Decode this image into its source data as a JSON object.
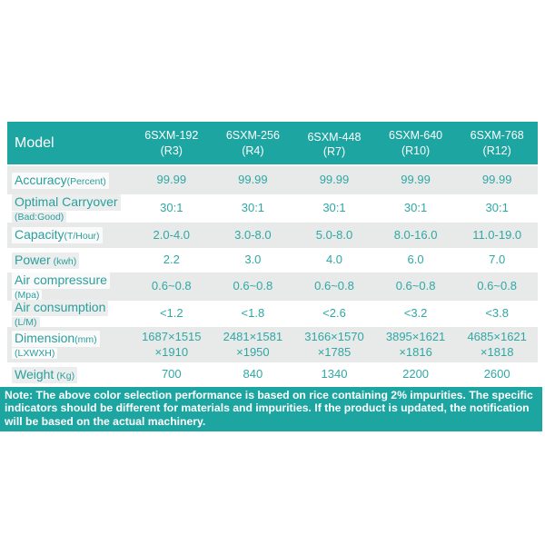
{
  "colors": {
    "teal_header": "#1DA5A2",
    "row_gray": "#E8E9E9",
    "teal_text": "#2FA8A5",
    "note_bg": "#1DA5A2",
    "header_text": "#FFFFFF"
  },
  "table": {
    "model_label": "Model",
    "columns": [
      "6SXM-192\n(R3)",
      "6SXM-256\n(R4)",
      "6SXM-448\n(R7)",
      "6SXM-640\n(R10)",
      "6SXM-768\n(R12)"
    ],
    "rows": [
      {
        "label": "Accuracy",
        "unit_inline": "(Percent)",
        "values": [
          "99.99",
          "99.99",
          "99.99",
          "99.99",
          "99.99"
        ]
      },
      {
        "label": "Optimal Carryover",
        "unit_below": "(Bad:Good)",
        "values": [
          "30:1",
          "30:1",
          "30:1",
          "30:1",
          "30:1"
        ]
      },
      {
        "label": "Capacity",
        "unit_inline": "(T/Hour)",
        "values": [
          "2.0-4.0",
          "3.0-8.0",
          "5.0-8.0",
          "8.0-16.0",
          "11.0-19.0"
        ]
      },
      {
        "label": "Power",
        "unit_inline": " (kwh)",
        "values": [
          "2.2",
          "3.0",
          "4.0",
          "6.0",
          "7.0"
        ]
      },
      {
        "label": "Air compressure",
        "unit_below": "(Mpa)",
        "values": [
          "0.6~0.8",
          "0.6~0.8",
          "0.6~0.8",
          "0.6~0.8",
          "0.6~0.8"
        ]
      },
      {
        "label": "Air consumption",
        "unit_below": "(L/M)",
        "values": [
          "<1.2",
          "<1.8",
          "<2.6",
          "<3.2",
          "<3.8"
        ]
      },
      {
        "label": "Dimension",
        "unit_inline": "(mm)",
        "unit_below": "(LXWXH)",
        "values": [
          "1687×1515\n×1910",
          "2481×1581\n×1950",
          "3166×1570\n×1785",
          "3895×1621\n×1816",
          "4685×1621\n×1818"
        ]
      },
      {
        "label": "Weight",
        "unit_inline": " (Kg)",
        "values": [
          "700",
          "840",
          "1340",
          "2200",
          "2600"
        ]
      }
    ]
  },
  "note": {
    "text": "Note: The above color selection performance is based on rice containing 2% impurities. The specific indicators should be different for materials and impurities. If the product is updated, the notification will be based on the actual machinery."
  }
}
